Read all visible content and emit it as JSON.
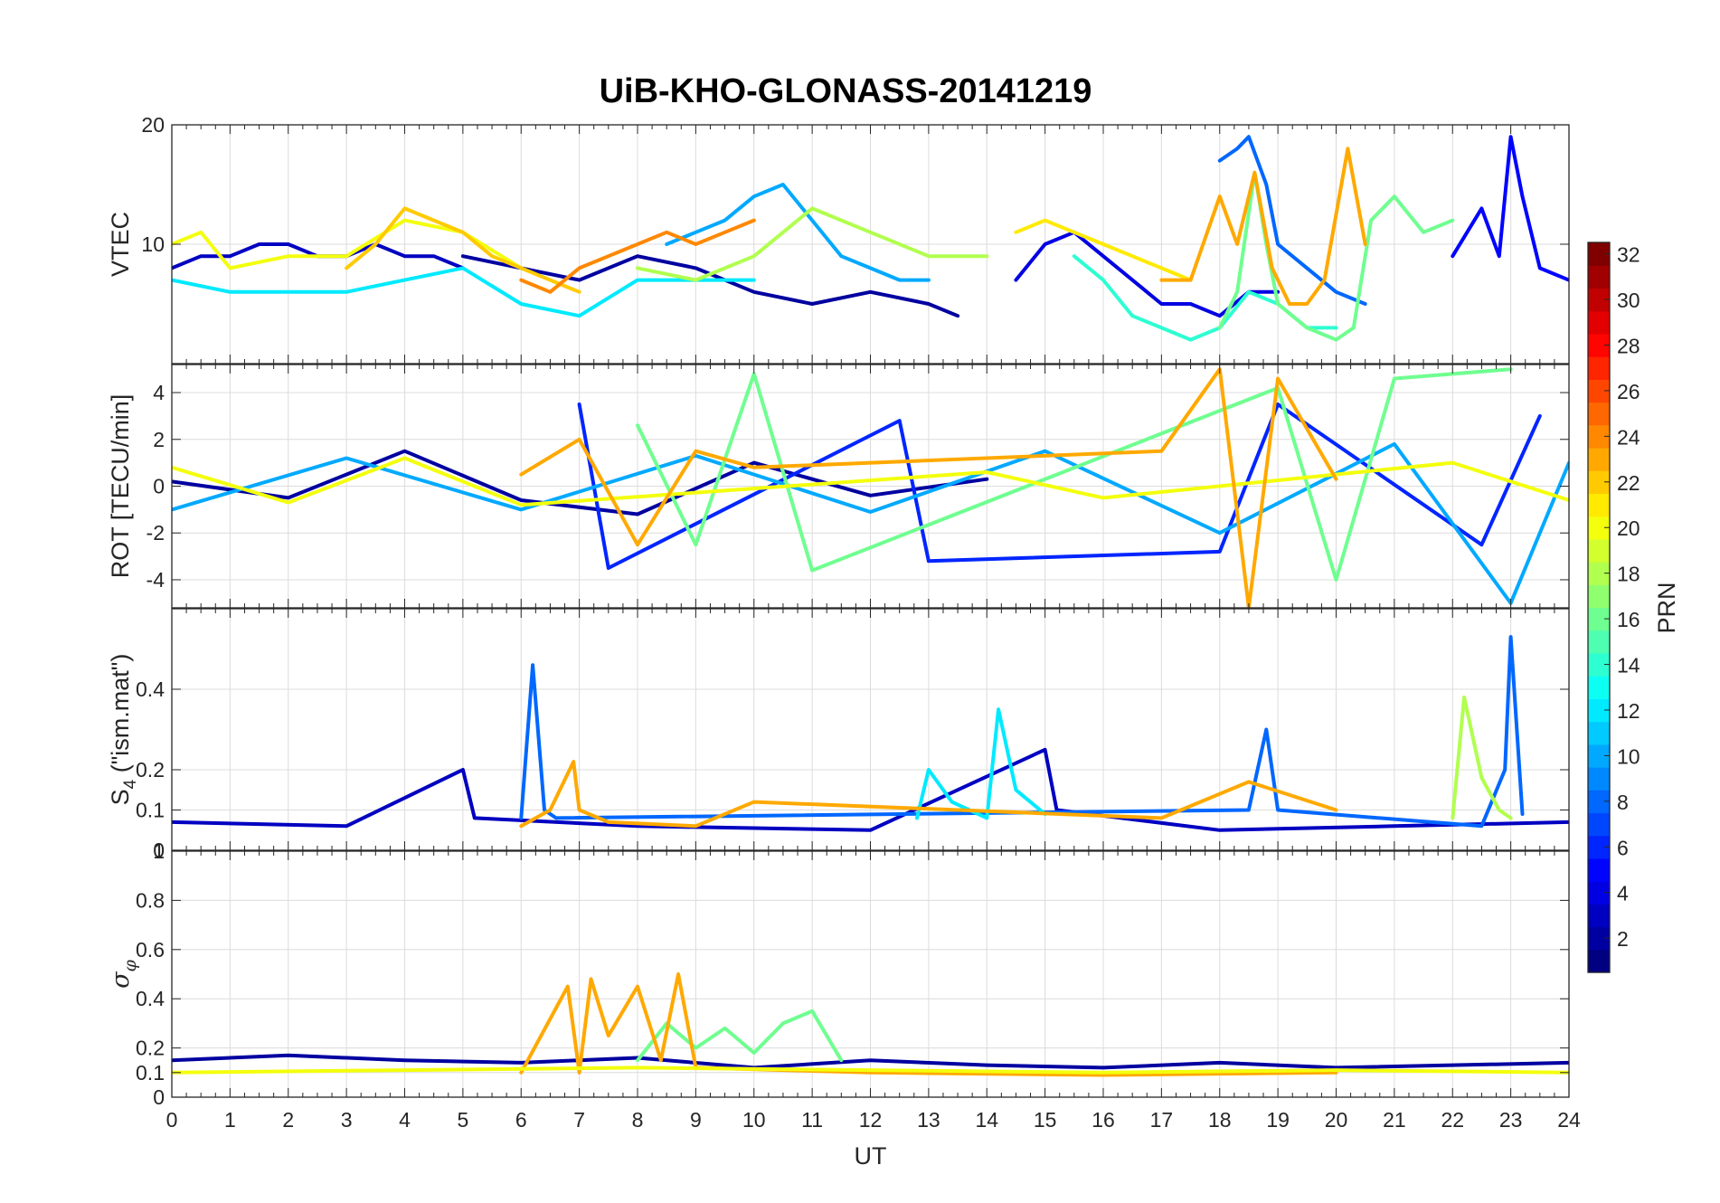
{
  "title": "UiB-KHO-GLONASS-20141219",
  "colors": {
    "axes": "#262626",
    "grid": "#dcdcdc",
    "colormap": "jet"
  },
  "chart_data": [
    {
      "type": "line",
      "ylabel": "VTEC",
      "x_range": [
        0,
        24
      ],
      "ylim": [
        0,
        20
      ],
      "y_ticks": [
        {
          "v": 10,
          "label": "10"
        },
        {
          "v": 20,
          "label": "20"
        }
      ],
      "grid": true,
      "series": [
        {
          "prn": 2,
          "x": [
            5.0,
            6.0,
            7.0,
            8.0,
            9.0,
            10.0,
            11.0,
            12.0,
            13.0,
            13.5
          ],
          "y": [
            9,
            8,
            7,
            9,
            8,
            6,
            5,
            6,
            5,
            4
          ]
        },
        {
          "prn": 3,
          "x": [
            0.0,
            0.5,
            1.0,
            1.5,
            2.0,
            2.5,
            3.0,
            3.5,
            4.0,
            4.5,
            5.0
          ],
          "y": [
            8,
            9,
            9,
            10,
            10,
            9,
            9,
            10,
            9,
            9,
            8
          ]
        },
        {
          "prn": 4,
          "x": [
            14.5,
            15.0,
            15.5,
            16.0,
            16.5,
            17.0,
            17.5,
            18.0,
            18.5,
            19.0
          ],
          "y": [
            7,
            10,
            11,
            9,
            7,
            5,
            5,
            4,
            6,
            6
          ]
        },
        {
          "prn": 5,
          "x": [
            22.0,
            22.5,
            22.8,
            23.0,
            23.2,
            23.5,
            24.0
          ],
          "y": [
            9,
            13,
            9,
            19,
            14,
            8,
            7
          ]
        },
        {
          "prn": 8,
          "x": [
            18.0,
            18.3,
            18.5,
            18.8,
            19.0,
            19.5,
            20.0,
            20.5
          ],
          "y": [
            17,
            18,
            19,
            15,
            10,
            8,
            6,
            5
          ]
        },
        {
          "prn": 10,
          "x": [
            8.5,
            9.0,
            9.5,
            10.0,
            10.5,
            11.0,
            11.5,
            12.0,
            12.5,
            13.0
          ],
          "y": [
            10,
            11,
            12,
            14,
            15,
            12,
            9,
            8,
            7,
            7
          ]
        },
        {
          "prn": 12,
          "x": [
            0.0,
            1.0,
            2.0,
            3.0,
            4.0,
            5.0,
            6.0,
            7.0,
            8.0,
            9.0,
            10.0
          ],
          "y": [
            7,
            6,
            6,
            6,
            7,
            8,
            5,
            4,
            7,
            7,
            7
          ]
        },
        {
          "prn": 14,
          "x": [
            15.5,
            16.0,
            16.5,
            17.0,
            17.5,
            18.0,
            18.5,
            19.0,
            19.5,
            20.0
          ],
          "y": [
            9,
            7,
            4,
            3,
            2,
            3,
            6,
            5,
            3,
            3
          ]
        },
        {
          "prn": 16,
          "x": [
            18.0,
            18.3,
            18.6,
            18.8,
            19.0,
            19.5,
            20.0,
            20.3,
            20.6,
            21.0,
            21.5,
            22.0
          ],
          "y": [
            3,
            6,
            16,
            10,
            5,
            3,
            2,
            3,
            12,
            14,
            11,
            12
          ]
        },
        {
          "prn": 18,
          "x": [
            8.0,
            9.0,
            10.0,
            10.5,
            11.0,
            12.0,
            13.0,
            14.0
          ],
          "y": [
            8,
            7,
            9,
            11,
            13,
            11,
            9,
            9
          ]
        },
        {
          "prn": 20,
          "x": [
            0.0,
            0.5,
            1.0,
            2.0,
            3.0,
            4.0,
            5.0,
            6.0
          ],
          "y": [
            10,
            11,
            8,
            9,
            9,
            12,
            11,
            8
          ]
        },
        {
          "prn": 21,
          "x": [
            14.5,
            15.0,
            15.5,
            16.0,
            16.5,
            17.0,
            17.5
          ],
          "y": [
            11,
            12,
            11,
            10,
            9,
            8,
            7
          ]
        },
        {
          "prn": 22,
          "x": [
            3.0,
            3.5,
            4.0,
            4.5,
            5.0,
            5.5,
            6.0,
            6.5,
            7.0
          ],
          "y": [
            8,
            10,
            13,
            12,
            11,
            9,
            8,
            7,
            6
          ]
        },
        {
          "prn": 23,
          "x": [
            17.0,
            17.5,
            18.0,
            18.3,
            18.6,
            18.9,
            19.2,
            19.5,
            19.8,
            20.2,
            20.5
          ],
          "y": [
            7,
            7,
            14,
            10,
            16,
            8,
            5,
            5,
            7,
            18,
            10
          ]
        },
        {
          "prn": 24,
          "x": [
            6.0,
            6.5,
            7.0,
            7.5,
            8.0,
            8.5,
            9.0,
            9.5,
            10.0
          ],
          "y": [
            7,
            6,
            8,
            9,
            10,
            11,
            10,
            11,
            12
          ]
        }
      ]
    },
    {
      "type": "line",
      "ylabel": "ROT [TECU/min]",
      "x_range": [
        0,
        24
      ],
      "ylim": [
        -5.2,
        5.2
      ],
      "y_ticks": [
        {
          "v": -4,
          "label": "-4"
        },
        {
          "v": -2,
          "label": "-2"
        },
        {
          "v": 0,
          "label": "0"
        },
        {
          "v": 2,
          "label": "2"
        },
        {
          "v": 4,
          "label": "4"
        }
      ],
      "grid": true,
      "series": [
        {
          "prn": 2,
          "x": [
            0.0,
            2.0,
            4.0,
            6.0,
            8.0,
            10.0,
            12.0,
            14.0
          ],
          "y": [
            0.2,
            -0.5,
            1.5,
            -0.6,
            -1.2,
            1.0,
            -0.4,
            0.3
          ]
        },
        {
          "prn": 6,
          "x": [
            7.0,
            7.5,
            12.5,
            13.0,
            18.0,
            19.0,
            22.5,
            23.5
          ],
          "y": [
            3.5,
            -3.5,
            2.8,
            -3.2,
            -2.8,
            3.5,
            -2.5,
            3.0
          ]
        },
        {
          "prn": 10,
          "x": [
            0.0,
            3.0,
            6.0,
            9.0,
            12.0,
            15.0,
            18.0,
            21.0,
            23.0,
            24.0
          ],
          "y": [
            -1.0,
            1.2,
            -1.0,
            1.3,
            -1.1,
            1.5,
            -2.0,
            1.8,
            -5.0,
            1.0
          ]
        },
        {
          "prn": 16,
          "x": [
            8.0,
            9.0,
            10.0,
            11.0,
            19.0,
            20.0,
            21.0,
            23.0
          ],
          "y": [
            2.6,
            -2.5,
            4.8,
            -3.6,
            4.2,
            -4.0,
            4.6,
            5.0
          ]
        },
        {
          "prn": 20,
          "x": [
            0.0,
            2.0,
            4.0,
            6.0,
            14.0,
            16.0,
            22.0,
            24.0
          ],
          "y": [
            0.8,
            -0.7,
            1.2,
            -0.8,
            0.6,
            -0.5,
            1.0,
            -0.6
          ]
        },
        {
          "prn": 23,
          "x": [
            6.0,
            7.0,
            8.0,
            9.0,
            10.0,
            17.0,
            18.0,
            18.5,
            19.0,
            20.0
          ],
          "y": [
            0.5,
            2.0,
            -2.5,
            1.5,
            0.8,
            1.5,
            5.0,
            -5.2,
            4.6,
            0.3
          ]
        }
      ]
    },
    {
      "type": "line",
      "ylabel": "S_4 (\"ism.mat\")",
      "x_range": [
        0,
        24
      ],
      "ylim": [
        0,
        0.6
      ],
      "y_ticks": [
        {
          "v": 0,
          "label": "0"
        },
        {
          "v": 0.1,
          "label": "0.1"
        },
        {
          "v": 0.2,
          "label": "0.2"
        },
        {
          "v": 0.4,
          "label": "0.4"
        }
      ],
      "grid": true,
      "series": [
        {
          "prn": 3,
          "x": [
            0.0,
            3.0,
            5.0,
            5.2,
            8.0,
            12.0,
            15.0,
            15.2,
            18.0,
            21.0,
            24.0
          ],
          "y": [
            0.07,
            0.06,
            0.2,
            0.08,
            0.06,
            0.05,
            0.25,
            0.1,
            0.05,
            0.06,
            0.07
          ]
        },
        {
          "prn": 8,
          "x": [
            6.0,
            6.2,
            6.4,
            6.6,
            18.5,
            18.8,
            19.0,
            22.5,
            22.9,
            23.0,
            23.2
          ],
          "y": [
            0.08,
            0.46,
            0.1,
            0.08,
            0.1,
            0.3,
            0.1,
            0.06,
            0.2,
            0.53,
            0.09
          ]
        },
        {
          "prn": 12,
          "x": [
            12.8,
            13.0,
            13.4,
            14.0,
            14.2,
            14.5,
            15.0
          ],
          "y": [
            0.08,
            0.2,
            0.12,
            0.08,
            0.35,
            0.15,
            0.09
          ]
        },
        {
          "prn": 18,
          "x": [
            22.0,
            22.2,
            22.5,
            22.8,
            23.0
          ],
          "y": [
            0.08,
            0.38,
            0.18,
            0.1,
            0.08
          ]
        },
        {
          "prn": 23,
          "x": [
            6.0,
            6.5,
            6.9,
            7.0,
            7.5,
            9.0,
            10.0,
            17.0,
            18.5,
            20.0
          ],
          "y": [
            0.06,
            0.1,
            0.22,
            0.1,
            0.07,
            0.06,
            0.12,
            0.08,
            0.17,
            0.1
          ]
        }
      ]
    },
    {
      "type": "line",
      "ylabel": "σ_φ",
      "x_range": [
        0,
        24
      ],
      "ylim": [
        0,
        1
      ],
      "y_ticks": [
        {
          "v": 0,
          "label": "0"
        },
        {
          "v": 0.1,
          "label": "0.1"
        },
        {
          "v": 0.2,
          "label": "0.2"
        },
        {
          "v": 0.4,
          "label": "0.4"
        },
        {
          "v": 0.6,
          "label": "0.6"
        },
        {
          "v": 0.8,
          "label": "0.8"
        },
        {
          "v": 1,
          "label": "1"
        }
      ],
      "grid": true,
      "x_ticks": [
        0,
        1,
        2,
        3,
        4,
        5,
        6,
        7,
        8,
        9,
        10,
        11,
        12,
        13,
        14,
        15,
        16,
        17,
        18,
        19,
        20,
        21,
        22,
        23,
        24
      ],
      "xlabel": "UT",
      "series": [
        {
          "prn": 2,
          "x": [
            0.0,
            2.0,
            4.0,
            6.0,
            8.0,
            10.0,
            12.0,
            14.0,
            16.0,
            18.0,
            20.0,
            24.0
          ],
          "y": [
            0.15,
            0.17,
            0.15,
            0.14,
            0.16,
            0.12,
            0.15,
            0.13,
            0.12,
            0.14,
            0.12,
            0.14
          ]
        },
        {
          "prn": 16,
          "x": [
            8.0,
            8.5,
            9.0,
            9.5,
            10.0,
            10.5,
            11.0,
            11.5
          ],
          "y": [
            0.15,
            0.3,
            0.2,
            0.28,
            0.18,
            0.3,
            0.35,
            0.15
          ]
        },
        {
          "prn": 23,
          "x": [
            6.0,
            6.8,
            7.0,
            7.2,
            7.5,
            8.0,
            8.4,
            8.7,
            9.0,
            12.0,
            16.0,
            20.0
          ],
          "y": [
            0.1,
            0.45,
            0.1,
            0.48,
            0.25,
            0.45,
            0.15,
            0.5,
            0.12,
            0.1,
            0.09,
            0.1
          ]
        },
        {
          "prn": 20,
          "x": [
            0.0,
            4.0,
            8.0,
            12.0,
            16.0,
            20.0,
            24.0
          ],
          "y": [
            0.1,
            0.11,
            0.12,
            0.11,
            0.1,
            0.11,
            0.1
          ]
        }
      ]
    }
  ],
  "colorbar": {
    "label": "PRN",
    "min": 1,
    "max": 32,
    "ticks": [
      {
        "v": 2,
        "label": "2"
      },
      {
        "v": 4,
        "label": "4"
      },
      {
        "v": 6,
        "label": "6"
      },
      {
        "v": 8,
        "label": "8"
      },
      {
        "v": 10,
        "label": "10"
      },
      {
        "v": 12,
        "label": "12"
      },
      {
        "v": 14,
        "label": "14"
      },
      {
        "v": 16,
        "label": "16"
      },
      {
        "v": 18,
        "label": "18"
      },
      {
        "v": 20,
        "label": "20"
      },
      {
        "v": 22,
        "label": "22"
      },
      {
        "v": 24,
        "label": "24"
      },
      {
        "v": 26,
        "label": "26"
      },
      {
        "v": 28,
        "label": "28"
      },
      {
        "v": 30,
        "label": "30"
      },
      {
        "v": 32,
        "label": "32"
      }
    ]
  }
}
